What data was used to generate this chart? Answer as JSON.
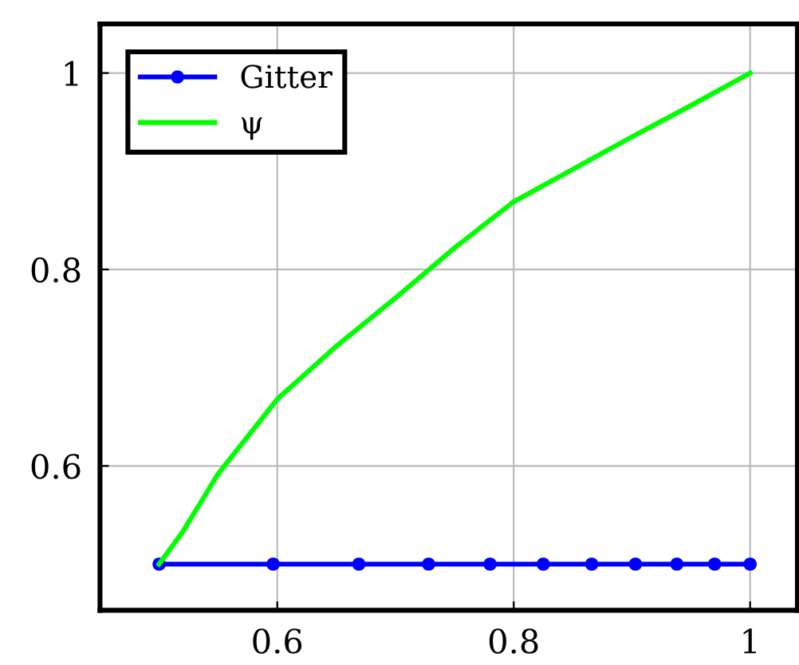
{
  "chart_data": {
    "type": "line",
    "xlim": [
      0.45,
      1.04
    ],
    "ylim": [
      0.453,
      1.05
    ],
    "xticks": [
      0.6,
      0.8,
      1
    ],
    "yticks": [
      0.6,
      0.8,
      1
    ],
    "grid": true,
    "legend": "top left",
    "series": [
      {
        "name": "Gitter",
        "color": "#0000ff",
        "marker": "circle",
        "x": [
          0.5,
          0.5965,
          0.669,
          0.728,
          0.78,
          0.825,
          0.866,
          0.903,
          0.938,
          0.97,
          1.0
        ],
        "values": [
          0.5,
          0.5,
          0.5,
          0.5,
          0.5,
          0.5,
          0.5,
          0.5,
          0.5,
          0.5,
          0.5
        ]
      },
      {
        "name": "ψ",
        "color": "#00ff00",
        "marker": "none",
        "x": [
          0.5,
          0.52,
          0.55,
          0.6,
          0.65,
          0.7,
          0.75,
          0.8,
          0.85,
          0.9,
          0.95,
          1.0
        ],
        "values": [
          0.5,
          0.533,
          0.592,
          0.668,
          0.722,
          0.771,
          0.822,
          0.869,
          0.902,
          0.935,
          0.967,
          1.0
        ]
      }
    ]
  }
}
